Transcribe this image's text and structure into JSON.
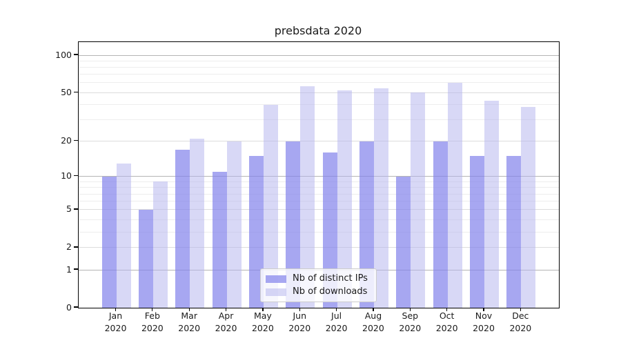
{
  "title": "prebsdata 2020",
  "chart_data": {
    "type": "bar",
    "title": "prebsdata 2020",
    "categories": [
      "Jan 2020",
      "Feb 2020",
      "Mar 2020",
      "Apr 2020",
      "May 2020",
      "Jun 2020",
      "Jul 2020",
      "Aug 2020",
      "Sep 2020",
      "Oct 2020",
      "Nov 2020",
      "Dec 2020"
    ],
    "series": [
      {
        "name": "Nb of distinct IPs",
        "values": [
          10,
          5,
          17,
          11,
          15,
          20,
          16,
          20,
          10,
          20,
          15,
          15
        ]
      },
      {
        "name": "Nb of downloads",
        "values": [
          13,
          9,
          21,
          20,
          40,
          56,
          52,
          54,
          50,
          60,
          43,
          38
        ]
      }
    ],
    "yscale": "log10(1+x)",
    "ylim": [
      0,
      128
    ],
    "y_tick_values": [
      0,
      1,
      2,
      5,
      10,
      20,
      50,
      100
    ],
    "y_tick_labels": [
      "0",
      "1",
      "2",
      "5",
      "10",
      "20",
      "50",
      "100"
    ],
    "major_gridline_values": [
      1,
      10,
      100
    ],
    "labeled_gridline_values": [
      2,
      5,
      20,
      50
    ],
    "minor_gridline_values": [
      3,
      4,
      6,
      7,
      8,
      9,
      30,
      40,
      60,
      70,
      80,
      90
    ],
    "grid": "horizontal",
    "legend_position": "lower center inside"
  },
  "legend": {
    "items": [
      {
        "label": "Nb of distinct IPs"
      },
      {
        "label": "Nb of downloads"
      }
    ]
  },
  "colors": {
    "bar_ips": "rgba(130,130,235,0.7)",
    "bar_downloads": "rgba(180,180,238,0.52)",
    "grid_major": "#b4b4b4",
    "grid_labeled": "#dcdcdc",
    "grid_minor": "#ededed",
    "axis": "#000000",
    "text": "#1a1a1a",
    "legend_bg": "rgba(255,255,255,0.8)",
    "legend_border": "#cccccc"
  }
}
